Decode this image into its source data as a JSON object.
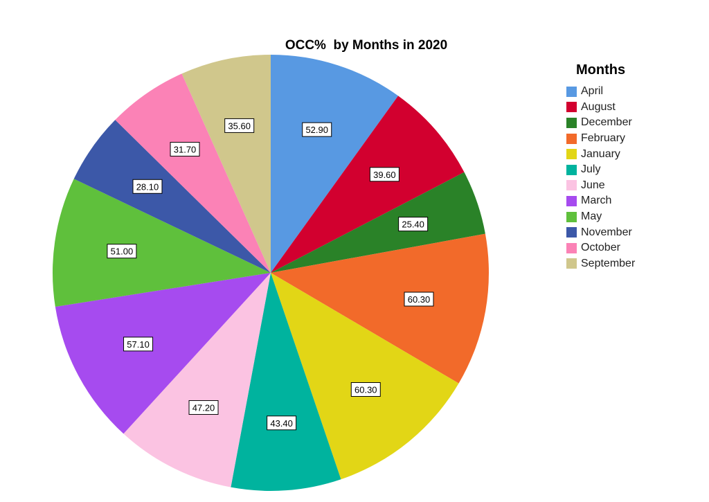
{
  "chart_data": {
    "type": "pie",
    "title": "OCC%  by Months in 2020",
    "legend_title": "Months",
    "legend_position": "right",
    "start_angle": "12 o'clock",
    "direction": "clockwise",
    "slices": [
      {
        "label": "April",
        "value": 52.9,
        "display": "52.90",
        "color": "#5899e2"
      },
      {
        "label": "August",
        "value": 39.6,
        "display": "39.60",
        "color": "#d2002f"
      },
      {
        "label": "December",
        "value": 25.4,
        "display": "25.40",
        "color": "#2a8228"
      },
      {
        "label": "February",
        "value": 60.3,
        "display": "60.30",
        "color": "#f26a2a"
      },
      {
        "label": "January",
        "value": 60.3,
        "display": "60.30",
        "color": "#e2d616"
      },
      {
        "label": "July",
        "value": 43.4,
        "display": "43.40",
        "color": "#00b39e"
      },
      {
        "label": "June",
        "value": 47.2,
        "display": "47.20",
        "color": "#fbc3e2"
      },
      {
        "label": "March",
        "value": 57.1,
        "display": "57.10",
        "color": "#a64bef"
      },
      {
        "label": "May",
        "value": 51.0,
        "display": "51.00",
        "color": "#5fc03c"
      },
      {
        "label": "November",
        "value": 28.1,
        "display": "28.10",
        "color": "#3c58a8"
      },
      {
        "label": "October",
        "value": 31.7,
        "display": "31.70",
        "color": "#fb82b6"
      },
      {
        "label": "September",
        "value": 35.6,
        "display": "35.60",
        "color": "#d0c78c"
      }
    ]
  }
}
